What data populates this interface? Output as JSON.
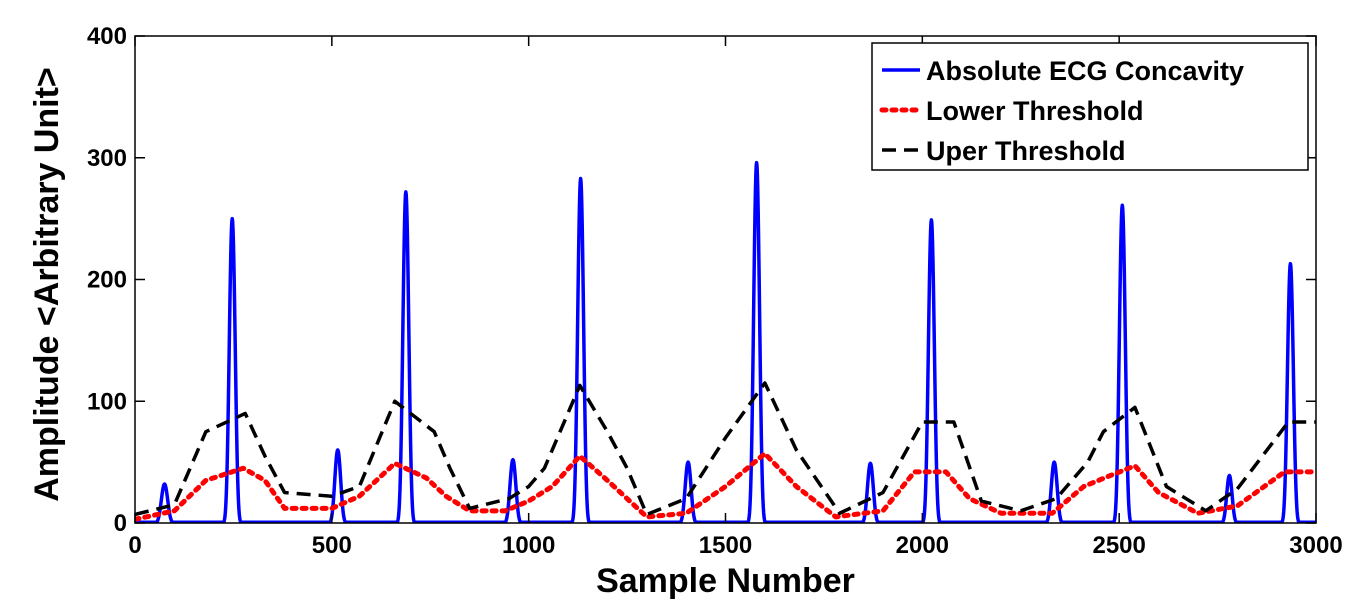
{
  "chart_data": {
    "type": "line",
    "title": "",
    "xlabel": "Sample Number",
    "ylabel": "Amplitude <Arbitrary Unit>",
    "xlim": [
      0,
      3000
    ],
    "ylim": [
      0,
      400
    ],
    "xticks": [
      0,
      500,
      1000,
      1500,
      2000,
      2500,
      3000
    ],
    "yticks": [
      0,
      100,
      200,
      300,
      400
    ],
    "xtick_labels": [
      "0",
      "500",
      "1000",
      "1500",
      "2000",
      "2500",
      "3000"
    ],
    "ytick_labels": [
      "0",
      "100",
      "200",
      "300",
      "400"
    ],
    "grid": false,
    "legend": "top-right",
    "series": [
      {
        "name": "Absolute ECG Concavity",
        "color": "#0000ff",
        "style": "solid",
        "peaks": [
          {
            "x": 75,
            "y": 32,
            "w": 14
          },
          {
            "x": 247,
            "y": 250,
            "w": 13
          },
          {
            "x": 515,
            "y": 60,
            "w": 13
          },
          {
            "x": 688,
            "y": 272,
            "w": 13
          },
          {
            "x": 960,
            "y": 52,
            "w": 13
          },
          {
            "x": 1132,
            "y": 283,
            "w": 13
          },
          {
            "x": 1405,
            "y": 50,
            "w": 13
          },
          {
            "x": 1579,
            "y": 296,
            "w": 13
          },
          {
            "x": 1868,
            "y": 49,
            "w": 13
          },
          {
            "x": 2023,
            "y": 249,
            "w": 13
          },
          {
            "x": 2335,
            "y": 50,
            "w": 13
          },
          {
            "x": 2508,
            "y": 261,
            "w": 13
          },
          {
            "x": 2780,
            "y": 39,
            "w": 12
          },
          {
            "x": 2935,
            "y": 213,
            "w": 13
          }
        ]
      },
      {
        "name": "Lower Threshold",
        "color": "#ff0000",
        "style": "dotted",
        "x": [
          0,
          100,
          180,
          275,
          330,
          380,
          500,
          570,
          660,
          740,
          790,
          850,
          940,
          1000,
          1060,
          1130,
          1200,
          1250,
          1300,
          1400,
          1500,
          1600,
          1680,
          1780,
          1900,
          1980,
          2060,
          2120,
          2200,
          2330,
          2410,
          2470,
          2540,
          2600,
          2700,
          2800,
          2920,
          3000
        ],
        "y": [
          3,
          10,
          35,
          45,
          35,
          12,
          12,
          22,
          49,
          37,
          22,
          10,
          10,
          18,
          30,
          55,
          35,
          20,
          5,
          8,
          30,
          57,
          30,
          5,
          10,
          42,
          42,
          20,
          8,
          8,
          30,
          38,
          47,
          25,
          8,
          14,
          42,
          42
        ]
      },
      {
        "name": "Uper Threshold",
        "color": "#000000",
        "style": "dashed",
        "x": [
          0,
          100,
          180,
          280,
          330,
          380,
          500,
          570,
          660,
          760,
          800,
          850,
          950,
          1000,
          1040,
          1130,
          1200,
          1250,
          1300,
          1400,
          1500,
          1600,
          1680,
          1790,
          1900,
          2000,
          2080,
          2150,
          2250,
          2340,
          2420,
          2460,
          2540,
          2620,
          2720,
          2800,
          2930,
          3000
        ],
        "y": [
          7,
          15,
          75,
          90,
          55,
          25,
          22,
          30,
          100,
          75,
          45,
          12,
          20,
          30,
          45,
          113,
          75,
          45,
          7,
          20,
          70,
          115,
          60,
          8,
          25,
          83,
          83,
          18,
          10,
          20,
          50,
          75,
          95,
          30,
          10,
          28,
          83,
          83
        ]
      }
    ]
  }
}
